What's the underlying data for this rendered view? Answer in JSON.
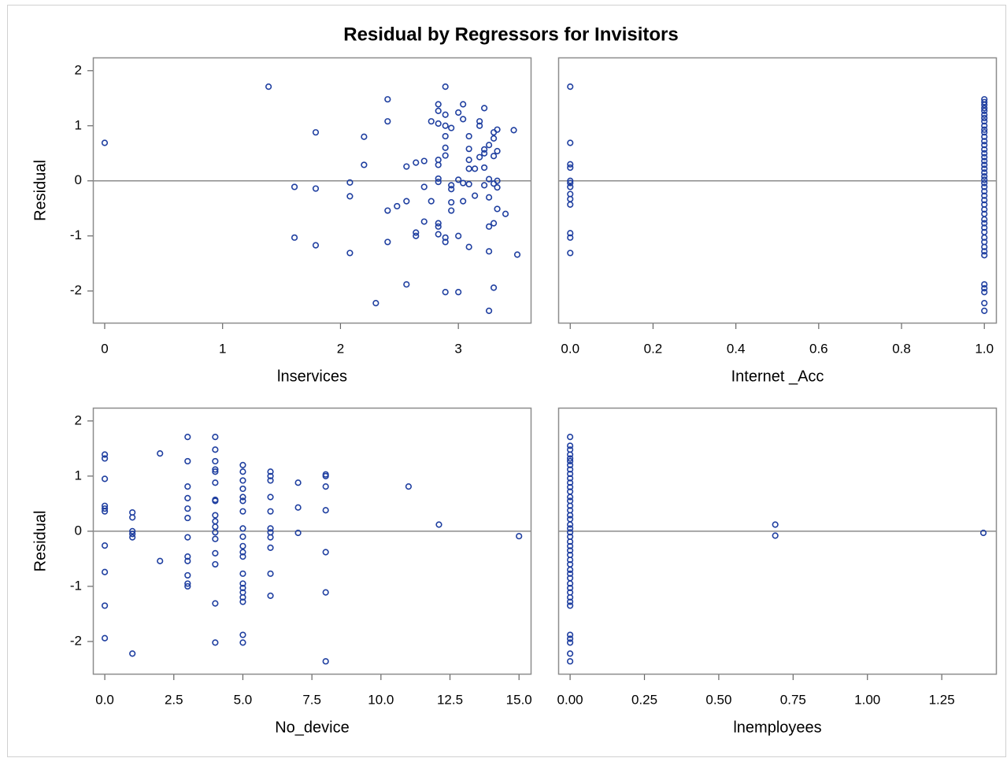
{
  "title": "Residual by Regressors for Invisitors",
  "chart_data": [
    {
      "type": "scatter",
      "x_label": "lnservices",
      "y_label": "Residual",
      "color": "#1f3fa0",
      "reference_y": 0,
      "xlim": [
        -0.1,
        3.62
      ],
      "ylim": [
        -2.59,
        2.24
      ],
      "xticks": [
        0,
        1,
        2,
        3
      ],
      "yticks": [
        2,
        1,
        0,
        -1,
        -2
      ],
      "x": [
        0,
        1.39,
        1.61,
        1.61,
        1.79,
        1.79,
        1.79,
        2.08,
        2.08,
        2.08,
        2.2,
        2.2,
        2.3,
        2.4,
        2.4,
        2.4,
        2.4,
        2.48,
        2.56,
        2.56,
        2.56,
        2.64,
        2.64,
        2.64,
        2.71,
        2.71,
        2.71,
        2.77,
        2.77,
        2.83,
        2.83,
        2.83,
        2.83,
        2.83,
        2.83,
        2.83,
        2.83,
        2.83,
        2.83,
        2.89,
        2.89,
        2.89,
        2.89,
        2.89,
        2.89,
        2.89,
        2.89,
        2.89,
        2.94,
        2.94,
        2.94,
        2.94,
        2.94,
        3.0,
        3.0,
        3.0,
        3.0,
        3.04,
        3.04,
        3.04,
        3.04,
        3.09,
        3.09,
        3.09,
        3.09,
        3.09,
        3.09,
        3.14,
        3.14,
        3.18,
        3.18,
        3.18,
        3.22,
        3.22,
        3.22,
        3.22,
        3.22,
        3.26,
        3.26,
        3.26,
        3.26,
        3.26,
        3.26,
        3.3,
        3.3,
        3.3,
        3.3,
        3.3,
        3.3,
        3.33,
        3.33,
        3.33,
        3.33,
        3.33,
        3.4,
        3.47,
        3.5
      ],
      "y": [
        0.69,
        1.71,
        -0.11,
        -1.03,
        0.88,
        -0.14,
        -1.17,
        -0.03,
        -0.28,
        -1.31,
        0.8,
        0.29,
        -2.22,
        1.48,
        1.08,
        -0.54,
        -1.11,
        -0.46,
        0.26,
        -0.37,
        -1.88,
        0.33,
        -0.94,
        -1.0,
        0.36,
        -0.11,
        -0.74,
        1.08,
        -0.37,
        1.39,
        1.27,
        1.04,
        0.38,
        0.29,
        0.04,
        -0.02,
        -0.77,
        -0.83,
        -0.97,
        1.71,
        1.2,
        1.0,
        0.81,
        0.6,
        0.46,
        -1.03,
        -1.11,
        -2.02,
        0.96,
        -0.08,
        -0.15,
        -0.39,
        -0.54,
        1.24,
        0.02,
        -1.0,
        -2.02,
        1.39,
        1.12,
        -0.04,
        -0.37,
        0.81,
        0.58,
        0.38,
        0.22,
        -0.06,
        -1.2,
        0.22,
        -0.27,
        1.08,
        1.0,
        0.43,
        1.32,
        0.57,
        0.5,
        0.24,
        -0.08,
        0.65,
        0.03,
        -0.3,
        -0.83,
        -1.28,
        -2.36,
        0.88,
        0.77,
        0.45,
        -0.05,
        -0.77,
        -1.94,
        0.93,
        0.54,
        0.0,
        -0.12,
        -0.51,
        -0.6,
        0.92,
        -1.34
      ]
    },
    {
      "type": "scatter",
      "x_label": "Internet _Acc",
      "color": "#1f3fa0",
      "reference_y": 0,
      "xlim": [
        -0.029,
        1.03
      ],
      "ylim": [
        -2.59,
        2.24
      ],
      "xticks": [
        {
          "value": 0,
          "label": "0.0"
        },
        0.2,
        0.4,
        0.6,
        0.8,
        {
          "value": 1,
          "label": "1.0"
        }
      ],
      "x": [
        0,
        0,
        0,
        0,
        0,
        0,
        0,
        0,
        0,
        0,
        0,
        0,
        0,
        1,
        1,
        1,
        1,
        1,
        1,
        1,
        1,
        1,
        1,
        1,
        1,
        1,
        1,
        1,
        1,
        1,
        1,
        1,
        1,
        1,
        1,
        1,
        1,
        1,
        1,
        1,
        1,
        1,
        1,
        1,
        1,
        1,
        1,
        1,
        1,
        1,
        1,
        1,
        1,
        1,
        1,
        1,
        1,
        1
      ],
      "y": [
        1.71,
        0.69,
        0.3,
        0.24,
        0.0,
        -0.04,
        -0.11,
        -0.24,
        -0.33,
        -0.43,
        -0.95,
        -1.03,
        -1.31,
        1.48,
        1.43,
        1.38,
        1.32,
        1.27,
        1.2,
        1.14,
        1.08,
        1.0,
        0.93,
        0.88,
        0.8,
        0.72,
        0.65,
        0.57,
        0.5,
        0.43,
        0.36,
        0.29,
        0.22,
        0.15,
        0.08,
        0.02,
        -0.04,
        -0.11,
        -0.19,
        -0.27,
        -0.35,
        -0.43,
        -0.52,
        -0.6,
        -0.7,
        -0.77,
        -0.85,
        -0.93,
        -1.03,
        -1.11,
        -1.2,
        -1.28,
        -1.35,
        -1.88,
        -1.95,
        -2.02,
        -2.22,
        -2.36
      ]
    },
    {
      "type": "scatter",
      "x_label": "No_device",
      "y_label": "Residual",
      "color": "#1f3fa0",
      "reference_y": 0,
      "xlim": [
        -0.43,
        15.45
      ],
      "ylim": [
        -2.6,
        2.24
      ],
      "xticks": [
        {
          "value": 0,
          "label": "0.0"
        },
        2.5,
        {
          "value": 5,
          "label": "5.0"
        },
        7.5,
        {
          "value": 10,
          "label": "10.0"
        },
        12.5,
        {
          "value": 15,
          "label": "15.0"
        }
      ],
      "yticks": [
        2,
        1,
        0,
        -1,
        -2
      ],
      "x": [
        0,
        0,
        0,
        0,
        0,
        0,
        0,
        0,
        0,
        0,
        1,
        1,
        1,
        1,
        1,
        1,
        2,
        2,
        3,
        3,
        3,
        3,
        3,
        3,
        3,
        3,
        3,
        3,
        3,
        3,
        4,
        4,
        4,
        4,
        4,
        4,
        4,
        4,
        4,
        4,
        4,
        4,
        4,
        4,
        4,
        4,
        4,
        5,
        5,
        5,
        5,
        5,
        5,
        5,
        5,
        5,
        5,
        5,
        5,
        5,
        5,
        5,
        5,
        5,
        5,
        5,
        5,
        6,
        6,
        6,
        6,
        6,
        6,
        6,
        6,
        6,
        6,
        6,
        7,
        7,
        7,
        8,
        8,
        8,
        8,
        8,
        8,
        8,
        11,
        12.1,
        15
      ],
      "y": [
        1.39,
        1.32,
        0.95,
        0.46,
        0.41,
        0.36,
        -0.26,
        -0.74,
        -1.35,
        -1.94,
        0.34,
        0.25,
        0.0,
        -0.05,
        -0.11,
        -2.22,
        1.41,
        -0.54,
        1.71,
        1.27,
        0.81,
        0.6,
        0.41,
        0.24,
        -0.11,
        -0.46,
        -0.54,
        -0.8,
        -0.95,
        -1.0,
        1.71,
        1.48,
        1.27,
        1.08,
        1.12,
        0.88,
        0.57,
        0.55,
        0.29,
        0.18,
        0.08,
        -0.02,
        -0.14,
        -0.4,
        -0.6,
        -1.31,
        -2.02,
        1.2,
        1.08,
        0.92,
        0.77,
        0.62,
        0.55,
        0.36,
        0.05,
        -0.1,
        -0.27,
        -0.38,
        -0.46,
        -0.77,
        -0.95,
        -1.03,
        -1.11,
        -1.2,
        -1.28,
        -1.88,
        -2.02,
        1.08,
        1.0,
        0.92,
        0.62,
        0.36,
        0.05,
        -0.02,
        -0.11,
        -0.3,
        -0.77,
        -1.17,
        0.88,
        0.43,
        -0.03,
        1.03,
        1.0,
        0.81,
        0.38,
        -0.38,
        -1.11,
        -2.36,
        0.81,
        0.12,
        -0.09
      ]
    },
    {
      "type": "scatter",
      "x_label": "lnemployees",
      "color": "#1f3fa0",
      "reference_y": 0,
      "xlim": [
        -0.04,
        1.435
      ],
      "ylim": [
        -2.6,
        2.24
      ],
      "xticks": [
        {
          "value": 0,
          "label": "0.00"
        },
        {
          "value": 0.25,
          "label": "0.25"
        },
        {
          "value": 0.5,
          "label": "0.50"
        },
        {
          "value": 0.75,
          "label": "0.75"
        },
        {
          "value": 1,
          "label": "1.00"
        },
        {
          "value": 1.25,
          "label": "1.25"
        }
      ],
      "x": [
        0,
        0,
        0,
        0,
        0,
        0,
        0,
        0,
        0,
        0,
        0,
        0,
        0,
        0,
        0,
        0,
        0,
        0,
        0,
        0,
        0,
        0,
        0,
        0,
        0,
        0,
        0,
        0,
        0,
        0,
        0,
        0,
        0,
        0,
        0,
        0,
        0,
        0,
        0,
        0,
        0,
        0,
        0,
        0.69,
        0.69,
        1.39
      ],
      "y": [
        1.71,
        1.55,
        1.48,
        1.39,
        1.32,
        1.27,
        1.2,
        1.12,
        1.04,
        0.96,
        0.88,
        0.8,
        0.72,
        0.62,
        0.55,
        0.46,
        0.38,
        0.29,
        0.22,
        0.12,
        0.05,
        -0.02,
        -0.1,
        -0.19,
        -0.27,
        -0.35,
        -0.43,
        -0.52,
        -0.6,
        -0.7,
        -0.77,
        -0.85,
        -0.95,
        -1.03,
        -1.11,
        -1.2,
        -1.28,
        -1.35,
        -1.88,
        -1.95,
        -2.02,
        -2.22,
        -2.36,
        0.12,
        -0.08,
        -0.03
      ]
    }
  ]
}
